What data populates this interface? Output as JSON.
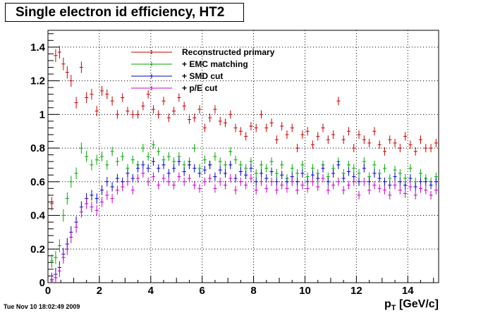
{
  "title": "Single electron id efficiency, HT2",
  "timestamp": "Tue Nov 10 18:02:49 2009",
  "chart_data": {
    "type": "scatter",
    "title": "Single electron id efficiency, HT2",
    "xlabel_main": "p",
    "xlabel_sub": "T",
    "xlabel_unit": " [GeV/c]",
    "ylabel": "",
    "xlim": [
      0,
      15.2
    ],
    "ylim": [
      0,
      1.5
    ],
    "x_ticks": [
      0,
      2,
      4,
      6,
      8,
      10,
      12,
      14
    ],
    "x_tick_labels": [
      "0",
      "2",
      "4",
      "6",
      "8",
      "10",
      "12",
      "14"
    ],
    "y_ticks": [
      0,
      0.2,
      0.4,
      0.6,
      0.8,
      1,
      1.2,
      1.4
    ],
    "y_tick_labels": [
      "0",
      "0.2",
      "0.4",
      "0.6",
      "0.8",
      "1",
      "1.2",
      "1.4"
    ],
    "grid": true,
    "legend_position": "top-center",
    "series": [
      {
        "name": "Reconstructed primary",
        "color": "#cc0000",
        "x": [
          0.15,
          0.3,
          0.45,
          0.6,
          0.75,
          0.9,
          1.1,
          1.3,
          1.5,
          1.7,
          1.9,
          2.1,
          2.3,
          2.5,
          2.7,
          2.9,
          3.1,
          3.3,
          3.5,
          3.7,
          3.9,
          4.1,
          4.3,
          4.5,
          4.7,
          4.9,
          5.1,
          5.3,
          5.5,
          5.7,
          5.9,
          6.1,
          6.3,
          6.5,
          6.7,
          6.9,
          7.1,
          7.3,
          7.5,
          7.7,
          7.9,
          8.1,
          8.3,
          8.5,
          8.7,
          8.9,
          9.1,
          9.3,
          9.5,
          9.7,
          9.9,
          10.1,
          10.3,
          10.5,
          10.7,
          10.9,
          11.1,
          11.3,
          11.5,
          11.7,
          11.9,
          12.1,
          12.3,
          12.5,
          12.7,
          12.9,
          13.1,
          13.3,
          13.5,
          13.7,
          13.9,
          14.1,
          14.3,
          14.5,
          14.7,
          14.9,
          15.1
        ],
        "y": [
          0.47,
          1.35,
          1.37,
          1.3,
          1.25,
          1.2,
          1.07,
          1.28,
          1.1,
          1.12,
          1.02,
          1.14,
          1.12,
          1.08,
          1.0,
          1.1,
          1.02,
          1.0,
          1.0,
          1.05,
          1.12,
          1.03,
          1.0,
          1.08,
          0.98,
          1.02,
          1.1,
          1.05,
          0.97,
          0.98,
          1.03,
          0.92,
          0.98,
          1.03,
          0.96,
          0.95,
          1.0,
          0.92,
          0.9,
          0.87,
          0.93,
          0.92,
          1.0,
          0.92,
          0.95,
          0.85,
          0.93,
          0.88,
          0.92,
          0.8,
          0.88,
          0.9,
          0.82,
          0.87,
          0.92,
          0.85,
          0.88,
          1.08,
          0.85,
          0.9,
          0.8,
          0.88,
          0.85,
          0.83,
          0.9,
          0.82,
          0.78,
          0.85,
          0.83,
          0.8,
          0.87,
          0.82,
          0.78,
          0.85,
          0.8,
          0.8,
          0.83
        ]
      },
      {
        "name": "+ EMC matching",
        "color": "#00aa00",
        "x": [
          0.15,
          0.3,
          0.45,
          0.6,
          0.75,
          0.9,
          1.1,
          1.3,
          1.5,
          1.7,
          1.9,
          2.1,
          2.3,
          2.5,
          2.7,
          2.9,
          3.1,
          3.3,
          3.5,
          3.7,
          3.9,
          4.1,
          4.3,
          4.5,
          4.7,
          4.9,
          5.1,
          5.3,
          5.5,
          5.7,
          5.9,
          6.1,
          6.3,
          6.5,
          6.7,
          6.9,
          7.1,
          7.3,
          7.5,
          7.7,
          7.9,
          8.1,
          8.3,
          8.5,
          8.7,
          8.9,
          9.1,
          9.3,
          9.5,
          9.7,
          9.9,
          10.1,
          10.3,
          10.5,
          10.7,
          10.9,
          11.1,
          11.3,
          11.5,
          11.7,
          11.9,
          12.1,
          12.3,
          12.5,
          12.7,
          12.9,
          13.1,
          13.3,
          13.5,
          13.7,
          13.9,
          14.1,
          14.3,
          14.5,
          14.7,
          14.9,
          15.1
        ],
        "y": [
          0.13,
          0.15,
          0.22,
          0.4,
          0.5,
          0.6,
          0.65,
          0.8,
          0.75,
          0.7,
          0.73,
          0.75,
          0.7,
          0.78,
          0.72,
          0.75,
          0.68,
          0.73,
          0.7,
          0.8,
          0.75,
          0.82,
          0.78,
          0.73,
          0.75,
          0.72,
          0.75,
          0.7,
          0.72,
          0.8,
          0.68,
          0.73,
          0.7,
          0.75,
          0.72,
          0.7,
          0.78,
          0.73,
          0.7,
          0.68,
          0.72,
          0.65,
          0.7,
          0.68,
          0.72,
          0.65,
          0.7,
          0.62,
          0.68,
          0.65,
          0.7,
          0.63,
          0.68,
          0.65,
          0.7,
          0.63,
          0.68,
          0.72,
          0.65,
          0.7,
          0.68,
          0.65,
          0.72,
          0.63,
          0.7,
          0.65,
          0.68,
          0.62,
          0.67,
          0.65,
          0.62,
          0.68,
          0.6,
          0.65,
          0.62,
          0.6,
          0.63
        ]
      },
      {
        "name": "+ SMD cut",
        "color": "#0000cc",
        "x": [
          0.15,
          0.3,
          0.45,
          0.6,
          0.75,
          0.9,
          1.1,
          1.3,
          1.5,
          1.7,
          1.9,
          2.1,
          2.3,
          2.5,
          2.7,
          2.9,
          3.1,
          3.3,
          3.5,
          3.7,
          3.9,
          4.1,
          4.3,
          4.5,
          4.7,
          4.9,
          5.1,
          5.3,
          5.5,
          5.7,
          5.9,
          6.1,
          6.3,
          6.5,
          6.7,
          6.9,
          7.1,
          7.3,
          7.5,
          7.7,
          7.9,
          8.1,
          8.3,
          8.5,
          8.7,
          8.9,
          9.1,
          9.3,
          9.5,
          9.7,
          9.9,
          10.1,
          10.3,
          10.5,
          10.7,
          10.9,
          11.1,
          11.3,
          11.5,
          11.7,
          11.9,
          12.1,
          12.3,
          12.5,
          12.7,
          12.9,
          13.1,
          13.3,
          13.5,
          13.7,
          13.9,
          14.1,
          14.3,
          14.5,
          14.7,
          14.9,
          15.1
        ],
        "y": [
          0.02,
          0.05,
          0.09,
          0.17,
          0.23,
          0.3,
          0.36,
          0.45,
          0.5,
          0.52,
          0.5,
          0.55,
          0.6,
          0.57,
          0.62,
          0.6,
          0.65,
          0.62,
          0.68,
          0.7,
          0.68,
          0.72,
          0.68,
          0.7,
          0.65,
          0.68,
          0.72,
          0.66,
          0.7,
          0.68,
          0.65,
          0.67,
          0.7,
          0.63,
          0.67,
          0.65,
          0.7,
          0.62,
          0.66,
          0.64,
          0.68,
          0.6,
          0.65,
          0.62,
          0.66,
          0.6,
          0.64,
          0.6,
          0.63,
          0.6,
          0.65,
          0.6,
          0.64,
          0.62,
          0.68,
          0.6,
          0.65,
          0.7,
          0.62,
          0.66,
          0.63,
          0.6,
          0.68,
          0.6,
          0.65,
          0.62,
          0.6,
          0.58,
          0.63,
          0.6,
          0.58,
          0.62,
          0.57,
          0.6,
          0.6,
          0.58,
          0.6
        ]
      },
      {
        "name": "+ p/E cut",
        "color": "#cc00cc",
        "x": [
          0.15,
          0.3,
          0.45,
          0.6,
          0.75,
          0.9,
          1.1,
          1.3,
          1.5,
          1.7,
          1.9,
          2.1,
          2.3,
          2.5,
          2.7,
          2.9,
          3.1,
          3.3,
          3.5,
          3.7,
          3.9,
          4.1,
          4.3,
          4.5,
          4.7,
          4.9,
          5.1,
          5.3,
          5.5,
          5.7,
          5.9,
          6.1,
          6.3,
          6.5,
          6.7,
          6.9,
          7.1,
          7.3,
          7.5,
          7.7,
          7.9,
          8.1,
          8.3,
          8.5,
          8.7,
          8.9,
          9.1,
          9.3,
          9.5,
          9.7,
          9.9,
          10.1,
          10.3,
          10.5,
          10.7,
          10.9,
          11.1,
          11.3,
          11.5,
          11.7,
          11.9,
          12.1,
          12.3,
          12.5,
          12.7,
          12.9,
          13.1,
          13.3,
          13.5,
          13.7,
          13.9,
          14.1,
          14.3,
          14.5,
          14.7,
          14.9,
          15.1
        ],
        "y": [
          0.01,
          0.03,
          0.07,
          0.15,
          0.2,
          0.27,
          0.33,
          0.42,
          0.47,
          0.45,
          0.43,
          0.48,
          0.52,
          0.5,
          0.55,
          0.57,
          0.6,
          0.55,
          0.62,
          0.65,
          0.6,
          0.63,
          0.58,
          0.62,
          0.6,
          0.58,
          0.63,
          0.6,
          0.62,
          0.58,
          0.56,
          0.6,
          0.62,
          0.56,
          0.6,
          0.58,
          0.62,
          0.55,
          0.6,
          0.58,
          0.62,
          0.55,
          0.6,
          0.56,
          0.6,
          0.55,
          0.58,
          0.56,
          0.6,
          0.55,
          0.58,
          0.56,
          0.6,
          0.57,
          0.62,
          0.55,
          0.58,
          0.6,
          0.55,
          0.58,
          0.6,
          0.52,
          0.6,
          0.55,
          0.58,
          0.56,
          0.55,
          0.52,
          0.58,
          0.55,
          0.53,
          0.57,
          0.52,
          0.56,
          0.55,
          0.52,
          0.55
        ]
      }
    ]
  }
}
